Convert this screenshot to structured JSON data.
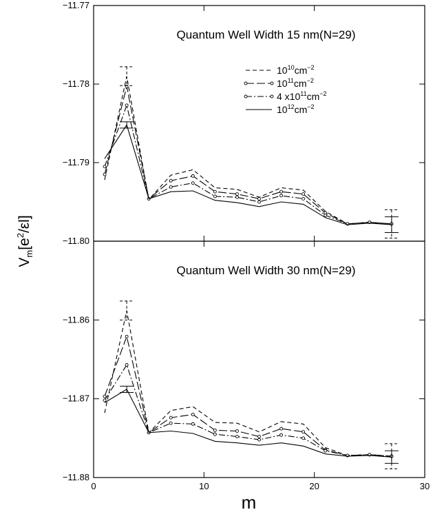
{
  "chart_data": {
    "type": "line",
    "xlabel": "m",
    "ylabel": "V_m[e^2/εl]",
    "ylabel_parts": {
      "base": "V",
      "sub": "m",
      "open": "[e",
      "sup": "2",
      "close": "/εl]"
    },
    "xlim": [
      0,
      30
    ],
    "x_ticks": [
      0,
      10,
      20,
      30
    ],
    "x_tick_labels": [
      "0",
      "10",
      "20",
      "30"
    ],
    "legend": {
      "placement": "upper-right of top panel",
      "entries": [
        {
          "base": "10",
          "sup": "10",
          "unit": "cm",
          "unit_sup": "−2",
          "style": "dashed"
        },
        {
          "base": "10",
          "sup": "11",
          "unit": "cm",
          "unit_sup": "−2",
          "style": "long-dash-dot-markers"
        },
        {
          "base": "4 x10",
          "sup": "11",
          "unit": "cm",
          "unit_sup": "−2",
          "style": "dash-dot-markers"
        },
        {
          "base": "10",
          "sup": "12",
          "unit": "cm",
          "unit_sup": "−2",
          "style": "solid"
        }
      ]
    },
    "panels": [
      {
        "title": "Quantum Well Width 15 nm(N=29)",
        "ylim": [
          -11.8,
          -11.77
        ],
        "y_ticks": [
          -11.77,
          -11.78,
          -11.79,
          -11.8
        ],
        "y_tick_labels": [
          "−11.77",
          "−11.78",
          "−11.79",
          "−11.80"
        ],
        "x": [
          1,
          3,
          5,
          7,
          9,
          11,
          13,
          15,
          17,
          19,
          21,
          23,
          25,
          27
        ],
        "series": [
          {
            "values": [
              -11.7922,
              -11.779,
              -11.7947,
              -11.7916,
              -11.7909,
              -11.7932,
              -11.7934,
              -11.7944,
              -11.7932,
              -11.7935,
              -11.7962,
              -11.7978,
              -11.7976,
              -11.7978
            ]
          },
          {
            "values": [
              -11.7915,
              -11.7803,
              -11.7946,
              -11.7923,
              -11.7917,
              -11.7937,
              -11.794,
              -11.7946,
              -11.7937,
              -11.794,
              -11.7964,
              -11.7978,
              -11.7976,
              -11.7978
            ]
          },
          {
            "values": [
              -11.7905,
              -11.7827,
              -11.7946,
              -11.7931,
              -11.7926,
              -11.7943,
              -11.7944,
              -11.795,
              -11.7942,
              -11.7946,
              -11.7967,
              -11.7978,
              -11.7976,
              -11.7978
            ]
          },
          {
            "values": [
              -11.7895,
              -11.7852,
              -11.7946,
              -11.7937,
              -11.7936,
              -11.7948,
              -11.7951,
              -11.7956,
              -11.795,
              -11.7953,
              -11.797,
              -11.7979,
              -11.7977,
              -11.7979
            ]
          }
        ],
        "error_bars": [
          {
            "x": 3,
            "center": -11.779,
            "half": 0.0012,
            "style": "dashed"
          },
          {
            "x": 3,
            "center": -11.7852,
            "half": 0.0004,
            "style": "solid"
          },
          {
            "x": 27,
            "center": -11.7978,
            "half": 0.0018,
            "style": "dashed"
          },
          {
            "x": 27,
            "center": -11.7979,
            "half": 0.001,
            "style": "solid"
          }
        ]
      },
      {
        "title": "Quantum Well Width 30 nm(N=29)",
        "ylim": [
          -11.88,
          -11.85
        ],
        "y_ticks": [
          -11.86,
          -11.87,
          -11.88
        ],
        "y_tick_labels": [
          "−11.86",
          "−11.87",
          "−11.88"
        ],
        "x": [
          1,
          3,
          5,
          7,
          9,
          11,
          13,
          15,
          17,
          19,
          21,
          23,
          25,
          27
        ],
        "series": [
          {
            "values": [
              -11.8718,
              -11.8588,
              -11.8743,
              -11.8715,
              -11.871,
              -11.873,
              -11.8731,
              -11.8742,
              -11.8729,
              -11.8732,
              -11.8762,
              -11.8772,
              -11.8771,
              -11.8773
            ]
          },
          {
            "values": [
              -11.8697,
              -11.8621,
              -11.8743,
              -11.8724,
              -11.872,
              -11.874,
              -11.8741,
              -11.8748,
              -11.8738,
              -11.8742,
              -11.8765,
              -11.8772,
              -11.8771,
              -11.8773
            ]
          },
          {
            "values": [
              -11.8702,
              -11.8657,
              -11.8743,
              -11.8731,
              -11.8732,
              -11.8745,
              -11.8748,
              -11.8752,
              -11.8746,
              -11.875,
              -11.8766,
              -11.8772,
              -11.8771,
              -11.8773
            ]
          },
          {
            "values": [
              -11.8705,
              -11.8688,
              -11.8743,
              -11.8741,
              -11.8744,
              -11.8754,
              -11.8756,
              -11.8759,
              -11.8756,
              -11.876,
              -11.877,
              -11.8773,
              -11.8772,
              -11.8774
            ]
          }
        ],
        "error_bars": [
          {
            "x": 3,
            "center": -11.8588,
            "half": 0.0012,
            "style": "dashed"
          },
          {
            "x": 3,
            "center": -11.8688,
            "half": 0.0004,
            "style": "solid"
          },
          {
            "x": 27,
            "center": -11.8773,
            "half": 0.0016,
            "style": "dashed"
          },
          {
            "x": 27,
            "center": -11.8774,
            "half": 0.0008,
            "style": "solid"
          }
        ]
      }
    ]
  }
}
